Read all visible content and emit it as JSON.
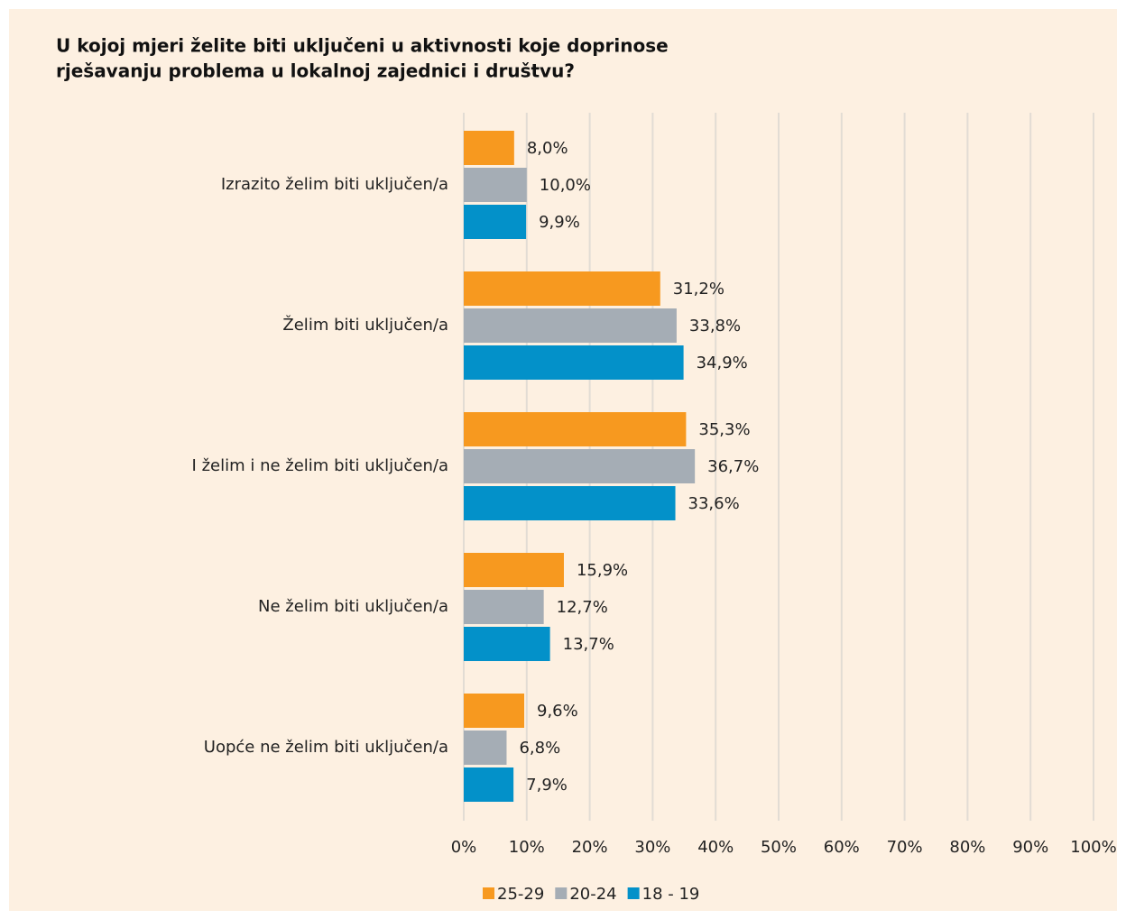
{
  "chart_data": {
    "type": "barh",
    "title": [
      "U kojoj mjeri želite biti uključeni u aktivnosti koje doprinose",
      "rješavanju problema u lokalnoj zajednici i društvu?"
    ],
    "categories": [
      "Izrazito želim biti uključen/a",
      "Želim biti uključen/a",
      "I želim i ne želim biti uključen/a",
      "Ne želim biti uključen/a",
      "Uopće ne želim biti uključen/a"
    ],
    "series": [
      {
        "name": "25-29",
        "color": "#f7991f",
        "values": [
          8.0,
          31.2,
          35.3,
          15.9,
          9.6
        ],
        "value_labels": [
          "8,0%",
          "31,2%",
          "35,3%",
          "15,9%",
          "9,6%"
        ]
      },
      {
        "name": "20-24",
        "color": "#a5adb5",
        "values": [
          10.0,
          33.8,
          36.7,
          12.7,
          6.8
        ],
        "value_labels": [
          "10,0%",
          "33,8%",
          "36,7%",
          "12,7%",
          "6,8%"
        ]
      },
      {
        "name": "18 - 19",
        "color": "#0391c9",
        "values": [
          9.9,
          34.9,
          33.6,
          13.7,
          7.9
        ],
        "value_labels": [
          "9,9%",
          "34,9%",
          "33,6%",
          "13,7%",
          "7,9%"
        ]
      }
    ],
    "xlim": [
      0,
      100
    ],
    "xticks": [
      {
        "value": 0,
        "label": "0%"
      },
      {
        "value": 10,
        "label": "10%"
      },
      {
        "value": 20,
        "label": "20%"
      },
      {
        "value": 30,
        "label": "30%"
      },
      {
        "value": 40,
        "label": "40%"
      },
      {
        "value": 50,
        "label": "50%"
      },
      {
        "value": 60,
        "label": "60%"
      },
      {
        "value": 70,
        "label": "70%"
      },
      {
        "value": 80,
        "label": "80%"
      },
      {
        "value": 90,
        "label": "90%"
      },
      {
        "value": 100,
        "label": "100%"
      }
    ],
    "grid": true,
    "legend": "bottom"
  }
}
